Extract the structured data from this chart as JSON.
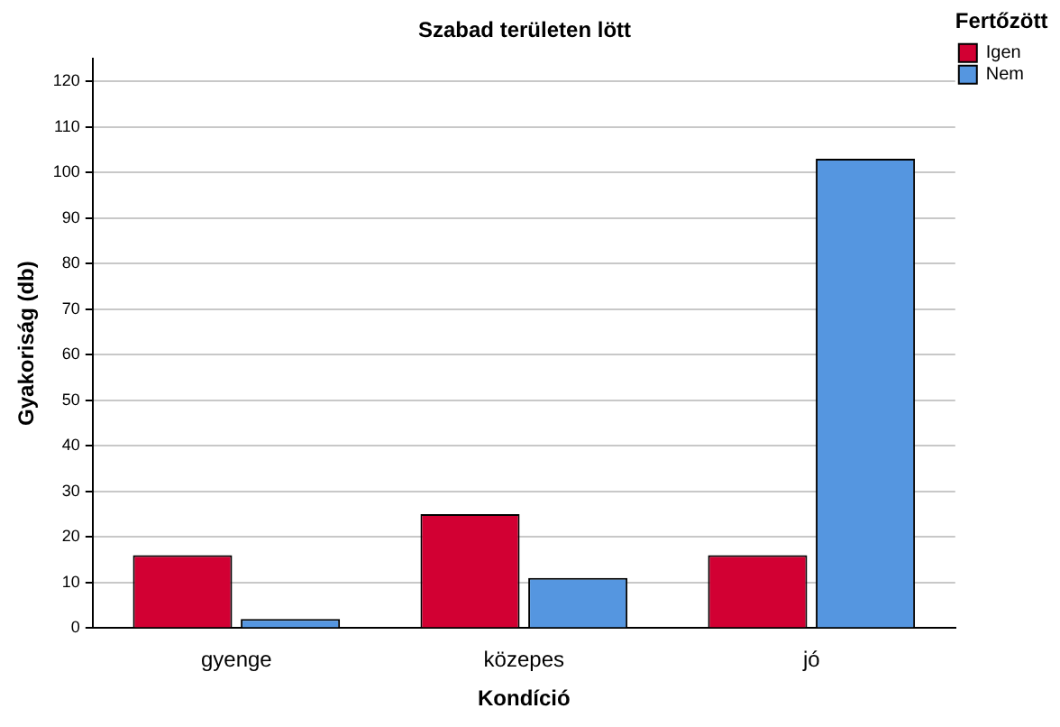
{
  "chart_data": {
    "type": "bar",
    "title": "Szabad területen lött",
    "xlabel": "Kondíció",
    "ylabel": "Gyakoriság (db)",
    "legend_title": "Fertőzött",
    "categories": [
      "gyenge",
      "közepes",
      "jó"
    ],
    "series": [
      {
        "name": "Igen",
        "color": "#d20033",
        "values": [
          16,
          25,
          16
        ]
      },
      {
        "name": "Nem",
        "color": "#5596e0",
        "values": [
          2,
          11,
          103
        ]
      }
    ],
    "ylim": [
      0,
      125
    ],
    "yticks": [
      0,
      10,
      20,
      30,
      40,
      50,
      60,
      70,
      80,
      90,
      100,
      110,
      120
    ],
    "grid": "y",
    "legend": "top right"
  }
}
